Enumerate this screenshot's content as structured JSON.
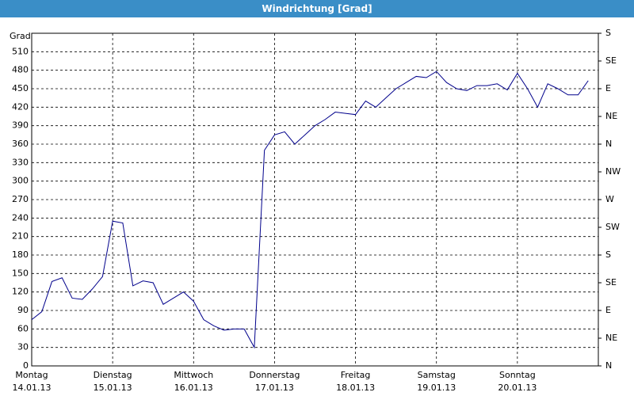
{
  "chart_data": {
    "type": "line",
    "title": "Windrichtung [Grad]",
    "y_label": "Grad",
    "x": [
      0,
      3,
      6,
      9,
      12,
      15,
      18,
      21,
      24,
      27,
      30,
      33,
      36,
      39,
      42,
      45,
      48,
      51,
      54,
      57,
      60,
      63,
      66,
      69,
      72,
      75,
      78,
      81,
      84,
      87,
      90,
      93,
      96,
      99,
      102,
      105,
      108,
      111,
      114,
      117,
      120,
      123,
      126,
      129,
      132,
      135,
      138,
      141,
      144,
      147,
      150,
      153,
      156,
      159,
      162,
      165
    ],
    "series": [
      {
        "name": "Windrichtung",
        "color": "#00008b",
        "values": [
          75,
          88,
          137,
          143,
          110,
          108,
          125,
          145,
          235,
          232,
          130,
          138,
          135,
          100,
          110,
          120,
          105,
          75,
          65,
          58,
          60,
          60,
          30,
          350,
          375,
          380,
          360,
          375,
          390,
          400,
          412,
          410,
          408,
          430,
          420,
          435,
          450,
          460,
          470,
          468,
          478,
          460,
          450,
          447,
          455,
          455,
          458,
          448,
          475,
          450,
          420,
          458,
          450,
          440,
          440,
          463
        ]
      }
    ],
    "xlim": [
      0,
      168
    ],
    "xticks": [
      {
        "value": 0,
        "label": "Montag"
      },
      {
        "value": 24,
        "label": "Dienstag"
      },
      {
        "value": 48,
        "label": "Mittwoch"
      },
      {
        "value": 72,
        "label": "Donnerstag"
      },
      {
        "value": 96,
        "label": "Freitag"
      },
      {
        "value": 120,
        "label": "Samstag"
      },
      {
        "value": 144,
        "label": "Sonntag"
      }
    ],
    "xtick_dates": [
      "14.01.13",
      "15.01.13",
      "16.01.13",
      "17.01.13",
      "18.01.13",
      "19.01.13",
      "20.01.13"
    ],
    "ylim": [
      0,
      540
    ],
    "yticks": [
      0,
      30,
      60,
      90,
      120,
      150,
      180,
      210,
      240,
      270,
      300,
      330,
      360,
      390,
      420,
      450,
      480,
      510
    ],
    "y2lim": [
      0,
      540
    ],
    "y2ticks": [
      {
        "value": 0,
        "label": "N"
      },
      {
        "value": 45,
        "label": "NE"
      },
      {
        "value": 90,
        "label": "E"
      },
      {
        "value": 135,
        "label": "SE"
      },
      {
        "value": 180,
        "label": "S"
      },
      {
        "value": 225,
        "label": "SW"
      },
      {
        "value": 270,
        "label": "W"
      },
      {
        "value": 315,
        "label": "NW"
      },
      {
        "value": 360,
        "label": "N"
      },
      {
        "value": 405,
        "label": "NE"
      },
      {
        "value": 450,
        "label": "E"
      },
      {
        "value": 495,
        "label": "SE"
      },
      {
        "value": 540,
        "label": "S"
      }
    ],
    "grid": true
  }
}
